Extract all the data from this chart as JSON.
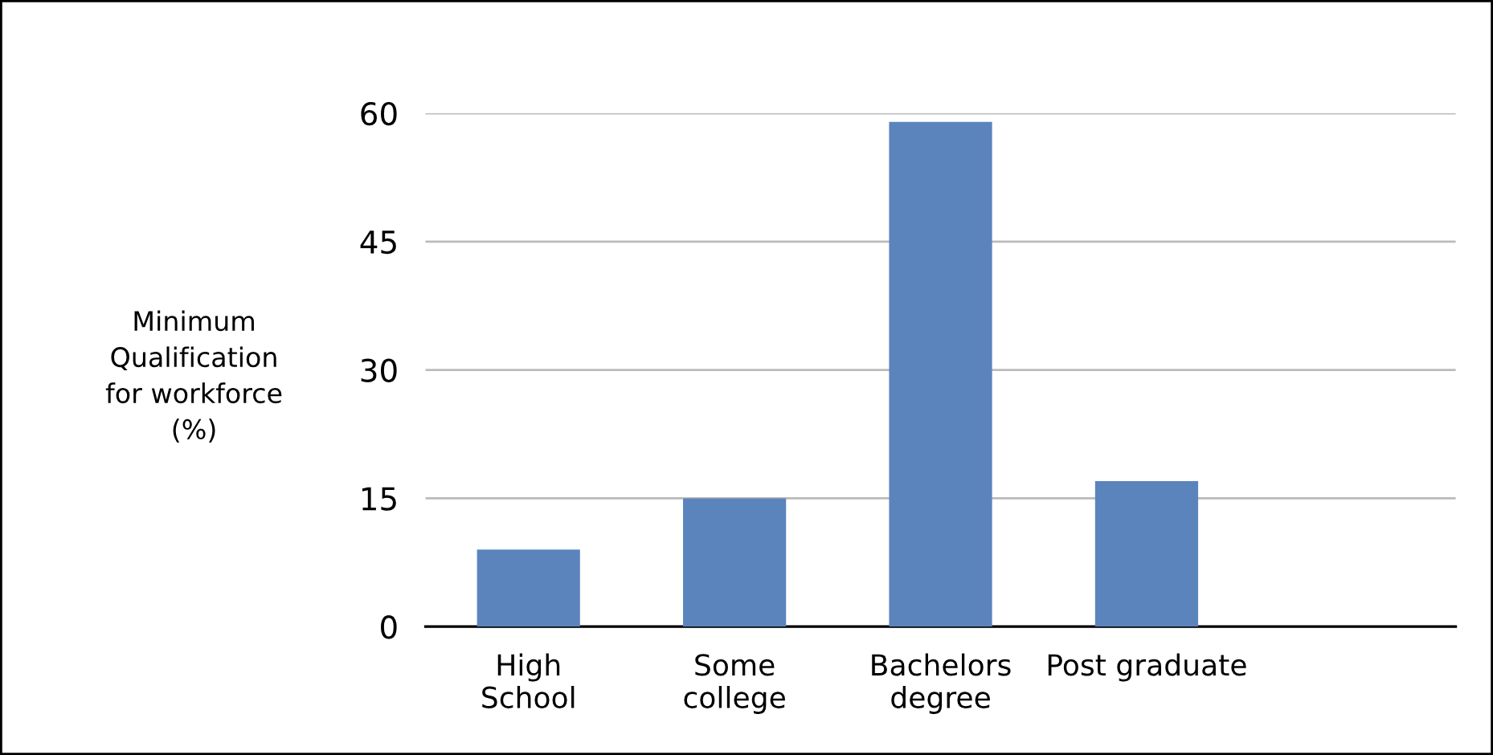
{
  "chart_data": {
    "type": "bar",
    "ylabel": "Minimum\nQualification\nfor workforce\n(%)",
    "categories": [
      "High\nSchool",
      "Some\ncollege",
      "Bachelors\ndegree",
      "Post graduate"
    ],
    "values": [
      9,
      15,
      59,
      17
    ],
    "color": "#5b84bd",
    "ylim": [
      0,
      60
    ],
    "yticks": [
      0,
      15,
      30,
      45,
      60
    ],
    "grid": "y"
  }
}
